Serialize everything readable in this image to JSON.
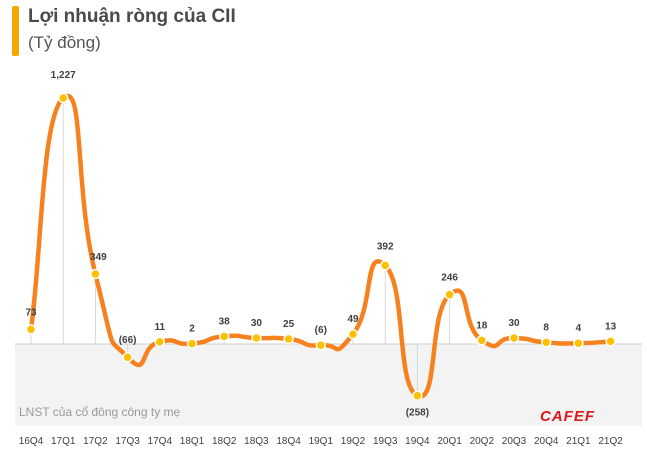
{
  "header": {
    "title": "Lợi nhuận ròng của CII",
    "subtitle": "(Tỷ đồng)"
  },
  "footer": {
    "note": "LNST của cổ đông công ty mẹ",
    "logo": "CAFEF"
  },
  "colors": {
    "line": "#f5821f",
    "marker": "#ffc000",
    "accent": "#f6a800",
    "logo": "#e0161a"
  },
  "chart_data": {
    "type": "line",
    "categories": [
      "16Q4",
      "17Q1",
      "17Q2",
      "17Q3",
      "17Q4",
      "18Q1",
      "18Q2",
      "18Q3",
      "18Q4",
      "19Q1",
      "19Q2",
      "19Q3",
      "19Q4",
      "20Q1",
      "20Q2",
      "20Q3",
      "20Q4",
      "21Q1",
      "21Q2"
    ],
    "values": [
      73,
      1227,
      349,
      -66,
      11,
      2,
      38,
      30,
      25,
      -6,
      49,
      392,
      -258,
      246,
      18,
      30,
      8,
      4,
      13
    ],
    "data_labels": [
      "73",
      "1,227",
      "349",
      "(66)",
      "11",
      "2",
      "38",
      "30",
      "25",
      "(6)",
      "49",
      "392",
      "(258)",
      "246",
      "18",
      "30",
      "8",
      "4",
      "13"
    ],
    "ylim": [
      -300,
      1300
    ],
    "smooth": true,
    "grid": false
  }
}
